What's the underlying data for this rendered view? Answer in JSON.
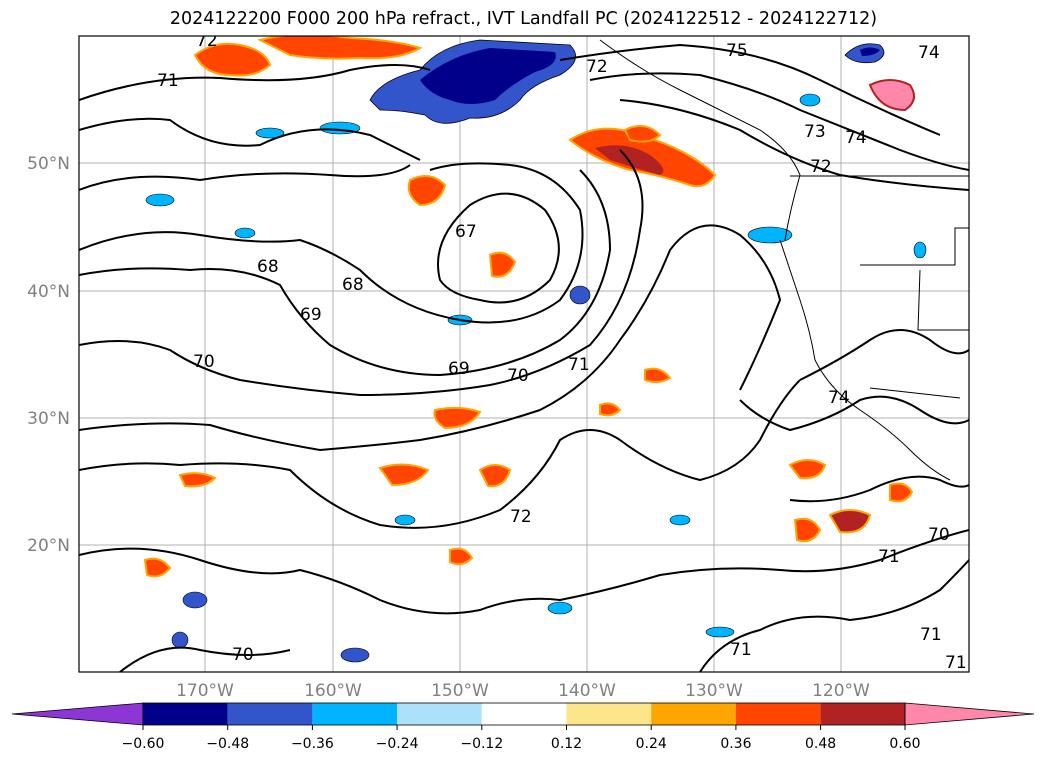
{
  "title": "2024122200 F000 200 hPa refract., IVT Landfall PC (2024122512 - 2024122712)",
  "map": {
    "lat_labels": [
      "50°N",
      "40°N",
      "30°N",
      "20°N"
    ],
    "lon_labels": [
      "170°W",
      "160°W",
      "150°W",
      "140°W",
      "130°W",
      "120°W"
    ],
    "contour_labels": [
      "72",
      "71",
      "75",
      "74",
      "72",
      "73",
      "74",
      "72",
      "67",
      "68",
      "68",
      "69",
      "70",
      "69",
      "70",
      "71",
      "74",
      "72",
      "71",
      "70",
      "70",
      "71",
      "71",
      "71"
    ],
    "grid": true
  },
  "colorbar": {
    "ticks": [
      "−0.60",
      "−0.48",
      "−0.36",
      "−0.24",
      "−0.12",
      "0.12",
      "0.24",
      "0.36",
      "0.48",
      "0.60"
    ],
    "colors": [
      "#8e35d5",
      "#00008b",
      "#3355cc",
      "#00b4ff",
      "#ade1fa",
      "#ffffff",
      "#fde68a",
      "#ffa500",
      "#ff4500",
      "#b22222",
      "#ff88aa"
    ]
  }
}
